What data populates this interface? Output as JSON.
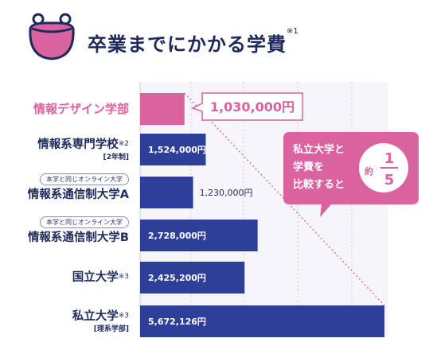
{
  "page_title": {
    "text": "卒業までにかかる学費",
    "note": "※1"
  },
  "colors": {
    "accent_pink": "#d9629f",
    "bar_navy": "#2e3f97",
    "text_navy": "#1f2a5c"
  },
  "icon": "coin-purse-icon",
  "chart_data": {
    "type": "bar",
    "orientation": "horizontal",
    "xlim": [
      0,
      5672126
    ],
    "grid": true,
    "categories": [
      {
        "label": "情報デザイン学部",
        "note": "",
        "sub": "",
        "tag": "",
        "highlight": true
      },
      {
        "label": "情報系専門学校",
        "note": "※2",
        "sub": "[2年制]",
        "tag": "",
        "highlight": false
      },
      {
        "label": "情報系通信制大学A",
        "note": "",
        "sub": "",
        "tag": "本学と同じオンライン大学",
        "highlight": false
      },
      {
        "label": "情報系通信制大学B",
        "note": "",
        "sub": "",
        "tag": "本学と同じオンライン大学",
        "highlight": false
      },
      {
        "label": "国立大学",
        "note": "※3",
        "sub": "",
        "tag": "",
        "highlight": false
      },
      {
        "label": "私立大学",
        "note": "※3",
        "sub": "[理系学部]",
        "tag": "",
        "highlight": false
      }
    ],
    "values": [
      1030000,
      1524000,
      1230000,
      2728000,
      2425200,
      5672126
    ],
    "value_labels": [
      "1,030,000円",
      "1,524,000円",
      "1,230,000円",
      "2,728,000円",
      "2,425,200円",
      "5,672,126円"
    ],
    "callout": {
      "lines": [
        "私立大学と",
        "学費を",
        "比較すると"
      ],
      "prefix": "約",
      "numerator": "1",
      "denominator": "5"
    }
  }
}
